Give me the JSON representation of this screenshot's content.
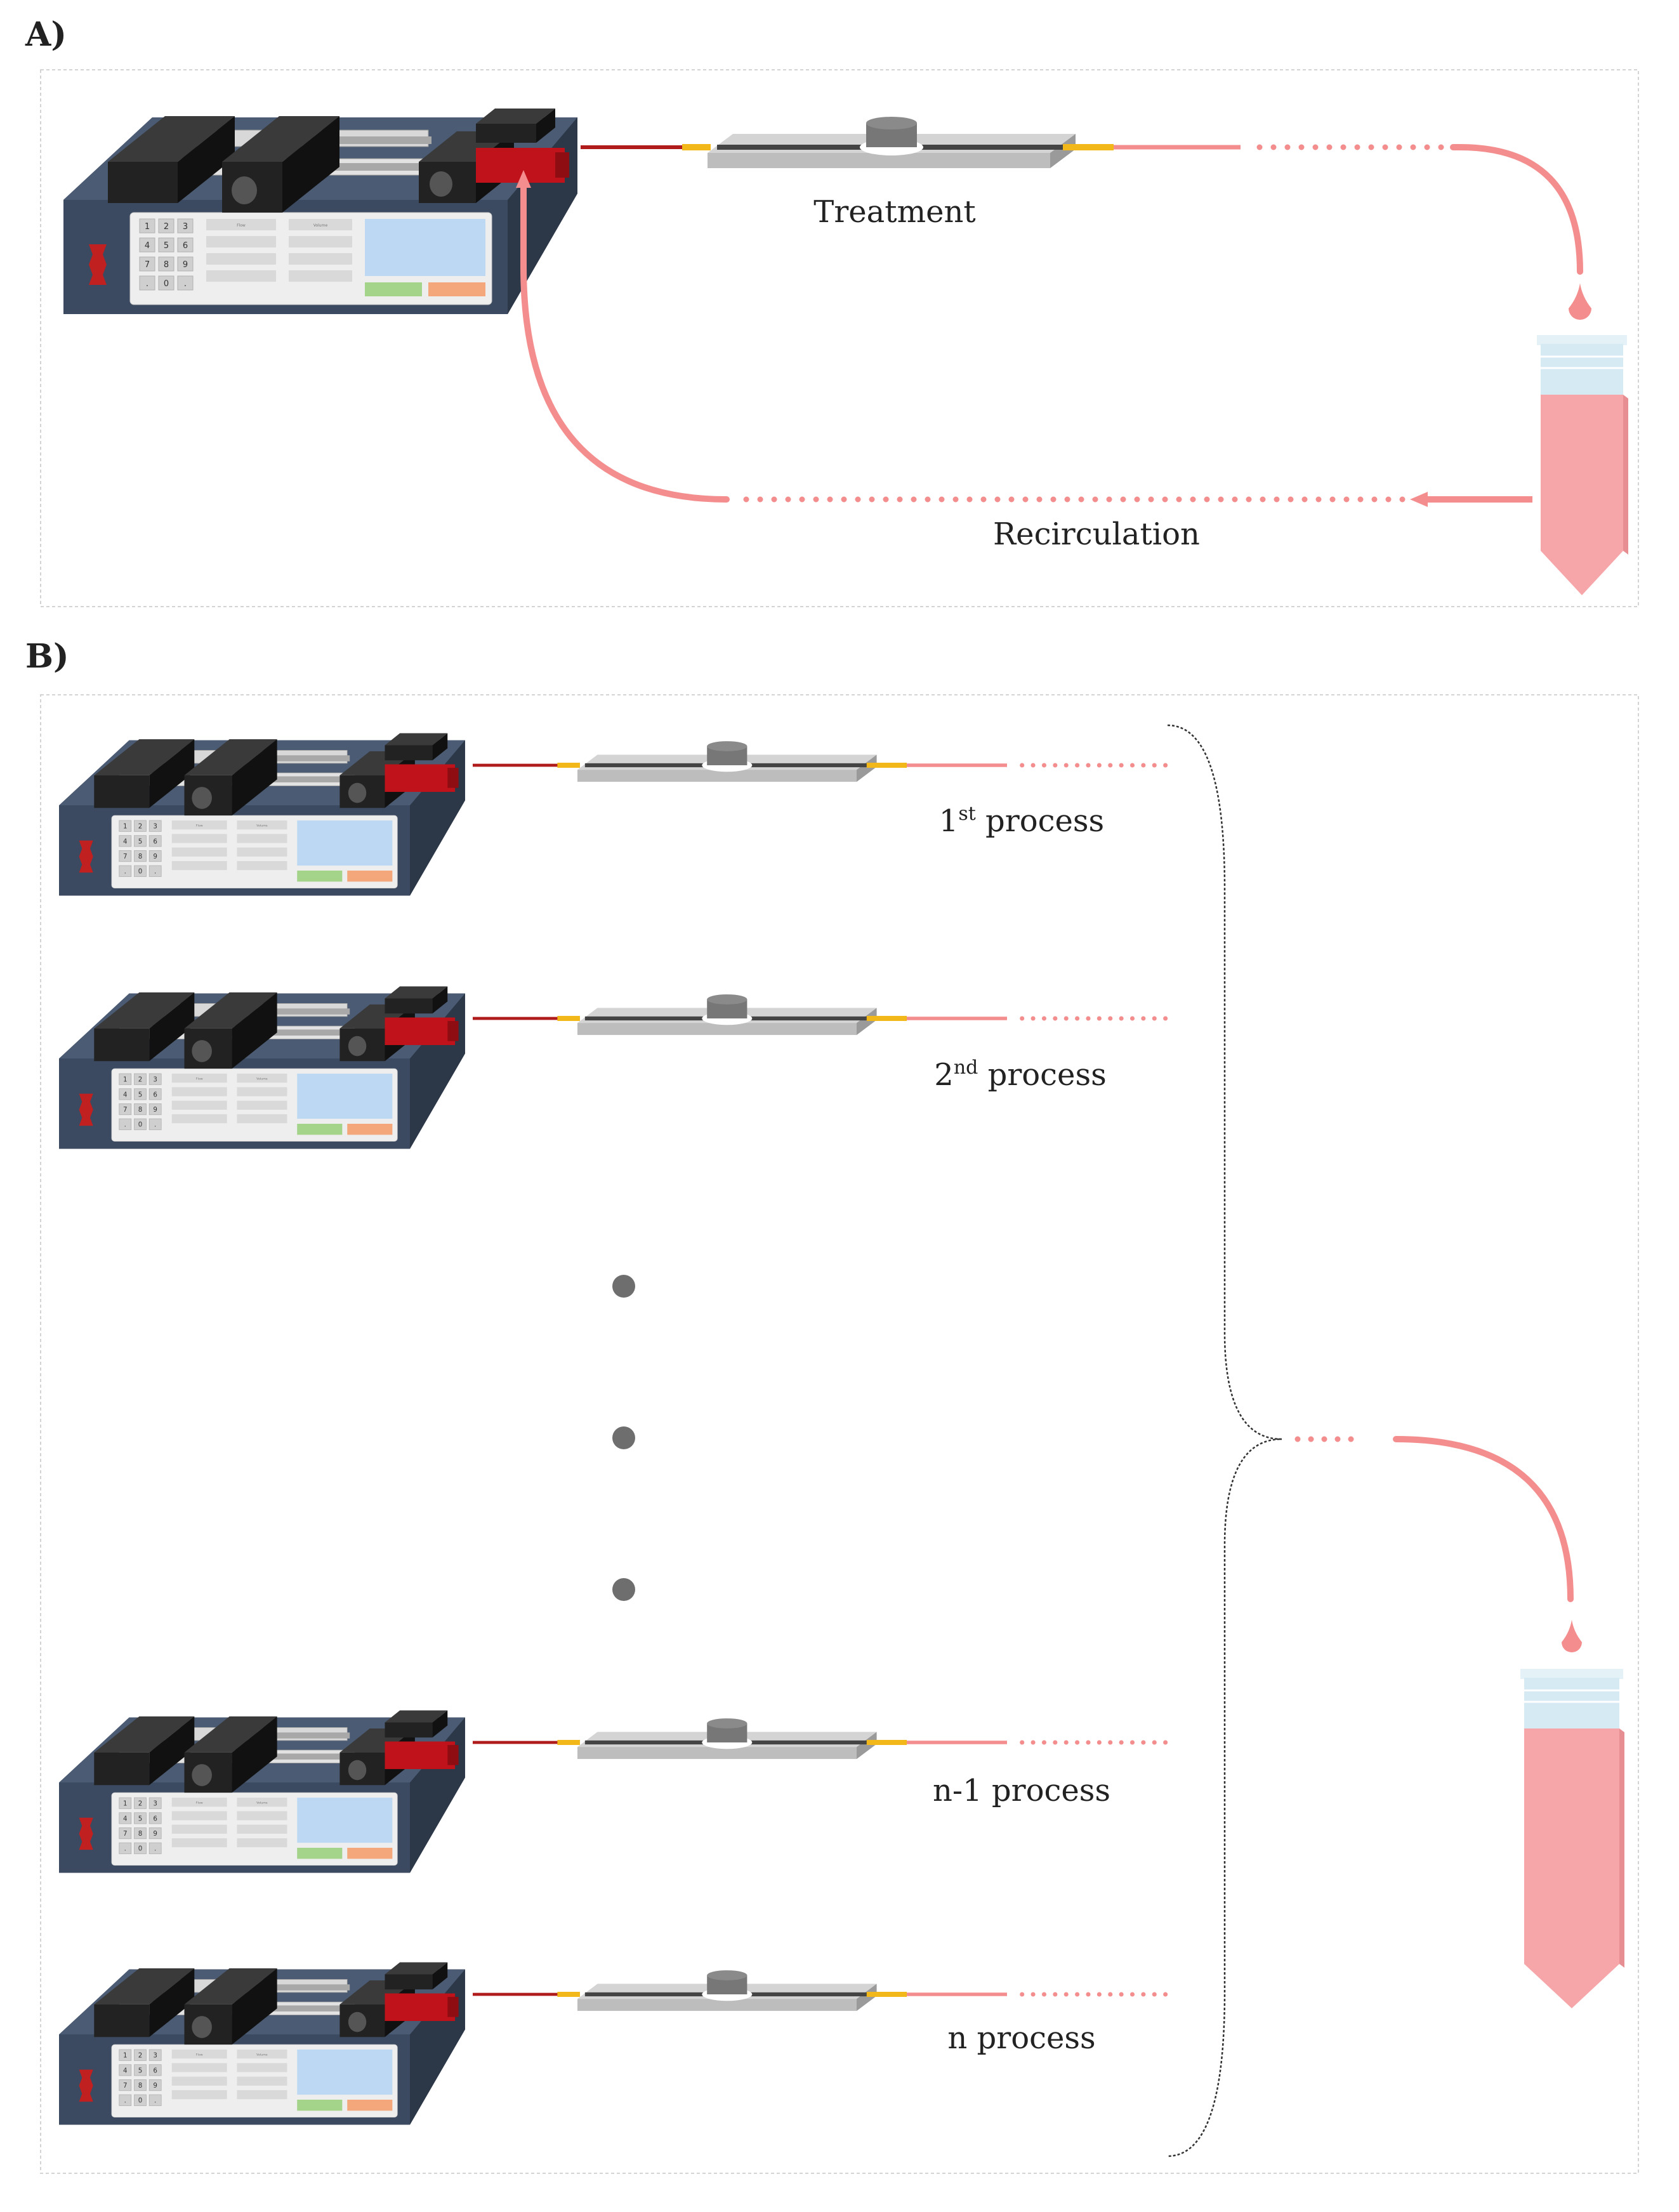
{
  "panels": {
    "a": {
      "label": "A)",
      "treatment_label": "Treatment",
      "recirculation_label": "Recirculation"
    },
    "b": {
      "label": "B)",
      "processes": [
        {
          "prefix": "1",
          "sup": "st",
          "suffix": " process"
        },
        {
          "prefix": "2",
          "sup": "nd",
          "suffix": " process"
        },
        {
          "prefix": "n-1 process",
          "sup": "",
          "suffix": ""
        },
        {
          "prefix": "n process",
          "sup": "",
          "suffix": ""
        }
      ]
    }
  },
  "pump": {
    "keypad": [
      "1",
      "2",
      "3",
      "4",
      "5",
      "6",
      "7",
      "8",
      "9",
      ".",
      "0",
      "."
    ],
    "field_labels": [
      "Flow",
      "Volume"
    ]
  },
  "colors": {
    "pump_body": "#3b4a60",
    "pump_side": "#2c3848",
    "tubing_red": "#b01c1c",
    "connector": "#f2b718",
    "flow_pink": "#f48e8e",
    "tube_fill": "#f6a6a8",
    "tube_cap": "#d6eaf4",
    "chip": "#c8c8c8",
    "frame": "#d4d4d4"
  }
}
